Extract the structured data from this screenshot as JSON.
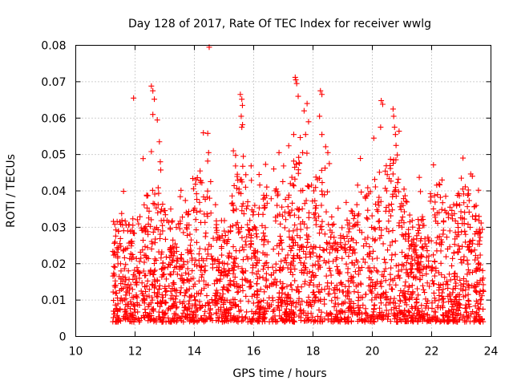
{
  "chart_data": {
    "type": "scatter",
    "title": "Day 128 of 2017, Rate Of TEC Index for receiver wwlg",
    "xlabel": "GPS time / hours",
    "ylabel": "ROTI / TECUs",
    "xlim": [
      10,
      24
    ],
    "ylim": [
      0,
      0.08
    ],
    "x_ticks": [
      10,
      12,
      14,
      16,
      18,
      20,
      22,
      24
    ],
    "y_ticks": [
      0,
      0.01,
      0.02,
      0.03,
      0.04,
      0.05,
      0.06,
      0.07,
      0.08
    ],
    "x_tick_labels": [
      "10",
      "12",
      "14",
      "16",
      "18",
      "20",
      "22",
      "24"
    ],
    "y_tick_labels": [
      "0",
      "0.01",
      "0.02",
      "0.03",
      "0.04",
      "0.05",
      "0.06",
      "0.07",
      "0.08"
    ],
    "grid": true,
    "marker": "+",
    "color": "#ff0000",
    "data_extent": {
      "x_start": 11.25,
      "x_end": 23.75
    },
    "series": [
      {
        "name": "ROTI",
        "x": [
          11.95,
          12.55,
          12.6,
          12.65,
          12.6,
          12.75,
          12.82,
          12.85,
          12.55,
          14.5,
          14.45,
          14.48,
          15.55,
          15.6,
          15.62,
          15.58,
          15.6,
          15.65,
          17.4,
          17.42,
          17.45,
          17.5,
          17.35,
          17.7,
          17.8,
          17.85,
          17.75,
          17.65,
          18.25,
          18.3,
          18.22,
          18.3,
          18.5,
          18.55,
          20.3,
          20.35,
          20.28,
          20.05,
          20.7,
          20.72,
          20.75,
          20.78,
          20.8,
          20.72,
          22.35,
          23.0,
          23.05,
          23.5
        ],
        "y": [
          0.0655,
          0.0688,
          0.0675,
          0.0652,
          0.061,
          0.0595,
          0.0535,
          0.048,
          0.0508,
          0.0795,
          0.0558,
          0.0505,
          0.0665,
          0.0652,
          0.0635,
          0.0605,
          0.0575,
          0.0495,
          0.0712,
          0.0705,
          0.0695,
          0.066,
          0.0555,
          0.062,
          0.064,
          0.059,
          0.0555,
          0.0505,
          0.0675,
          0.0665,
          0.0605,
          0.0555,
          0.0505,
          0.0475,
          0.0648,
          0.0638,
          0.0575,
          0.0545,
          0.0625,
          0.0605,
          0.0575,
          0.0555,
          0.0525,
          0.0485,
          0.043,
          0.0435,
          0.0405,
          0.036
        ]
      }
    ]
  }
}
